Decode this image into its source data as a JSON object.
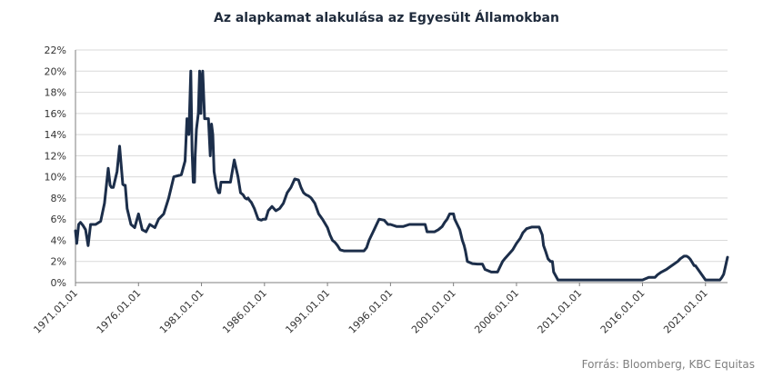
{
  "chart_data": {
    "type": "line",
    "title": "Az alapkamat alakulása az Egyesült Államokban",
    "xlabel": "",
    "ylabel": "",
    "ylim": [
      0,
      22
    ],
    "x_range": [
      1971.0,
      2022.75
    ],
    "y_ticks": [
      "0%",
      "2%",
      "4%",
      "6%",
      "8%",
      "10%",
      "12%",
      "14%",
      "16%",
      "18%",
      "20%",
      "22%"
    ],
    "x_tick_labels": [
      "1971.01.01",
      "1976.01.01",
      "1981.01.01",
      "1986.01.01",
      "1991.01.01",
      "1996.01.01",
      "2001.01.01",
      "2006.01.01",
      "2011.01.01",
      "2016.01.01",
      "2021.01.01"
    ],
    "grid": "horizontal",
    "line_color": "#1c2e4a",
    "series": [
      {
        "x": [
          1971.0,
          1971.1,
          1971.25,
          1971.4,
          1971.6,
          1971.8,
          1972.0,
          1972.2,
          1972.6,
          1973.0,
          1973.3,
          1973.6,
          1973.75,
          1973.85,
          1974.0,
          1974.3,
          1974.5,
          1974.75,
          1974.85,
          1974.95,
          1975.1,
          1975.4,
          1975.7,
          1976.0,
          1976.3,
          1976.6,
          1976.9,
          1977.3,
          1977.6,
          1978.0,
          1978.4,
          1978.8,
          1979.1,
          1979.4,
          1979.7,
          1979.85,
          1980.0,
          1980.15,
          1980.25,
          1980.35,
          1980.45,
          1980.5,
          1980.6,
          1980.75,
          1980.85,
          1980.95,
          1981.0,
          1981.1,
          1981.25,
          1981.4,
          1981.55,
          1981.7,
          1981.8,
          1981.9,
          1982.0,
          1982.2,
          1982.35,
          1982.45,
          1982.55,
          1982.75,
          1982.9,
          1983.0,
          1983.3,
          1983.6,
          1983.9,
          1984.1,
          1984.3,
          1984.45,
          1984.6,
          1984.7,
          1984.8,
          1984.95,
          1985.2,
          1985.5,
          1985.75,
          1985.9,
          1986.1,
          1986.3,
          1986.6,
          1986.9,
          1987.2,
          1987.5,
          1987.8,
          1988.1,
          1988.4,
          1988.7,
          1988.9,
          1989.1,
          1989.3,
          1989.5,
          1989.7,
          1990.0,
          1990.3,
          1990.6,
          1990.8,
          1991.0,
          1991.2,
          1991.4,
          1991.6,
          1991.8,
          1992.0,
          1992.3,
          1992.6,
          1992.9,
          1993.4,
          1993.9,
          1994.1,
          1994.3,
          1994.5,
          1994.7,
          1994.9,
          1995.1,
          1995.5,
          1995.8,
          1996.0,
          1996.5,
          1997.0,
          1997.5,
          1998.0,
          1998.5,
          1998.75,
          1998.9,
          1999.1,
          1999.5,
          1999.8,
          2000.1,
          2000.3,
          2000.5,
          2000.7,
          2000.9,
          2001.0,
          2001.1,
          2001.3,
          2001.5,
          2001.7,
          2001.85,
          2001.95,
          2002.1,
          2002.5,
          2002.9,
          2003.3,
          2003.5,
          2004.0,
          2004.3,
          2004.5,
          2004.7,
          2004.9,
          2005.1,
          2005.4,
          2005.7,
          2006.0,
          2006.3,
          2006.5,
          2006.8,
          2007.2,
          2007.5,
          2007.65,
          2007.8,
          2007.95,
          2008.05,
          2008.15,
          2008.3,
          2008.5,
          2008.7,
          2008.85,
          2008.95,
          2009.3,
          2010.0,
          2011.0,
          2012.0,
          2013.0,
          2014.0,
          2015.0,
          2015.9,
          2016.0,
          2016.5,
          2016.9,
          2017.0,
          2017.2,
          2017.5,
          2017.9,
          2018.2,
          2018.5,
          2018.8,
          2019.0,
          2019.3,
          2019.5,
          2019.65,
          2019.8,
          2019.95,
          2020.1,
          2020.2,
          2021.0,
          2021.5,
          2022.0,
          2022.15,
          2022.3,
          2022.45,
          2022.6,
          2022.75
        ],
        "name": "",
        "values": [
          4.9,
          3.7,
          5.5,
          5.7,
          5.4,
          5.0,
          3.5,
          5.5,
          5.5,
          5.8,
          7.5,
          10.8,
          9.2,
          9.0,
          9.0,
          10.5,
          12.9,
          9.3,
          9.2,
          9.2,
          7.0,
          5.5,
          5.2,
          6.5,
          5.0,
          4.8,
          5.5,
          5.2,
          6.0,
          6.5,
          8.0,
          10.0,
          10.1,
          10.2,
          11.5,
          15.5,
          14.0,
          20.0,
          12.5,
          9.5,
          9.5,
          12.0,
          14.5,
          16.0,
          20.0,
          16.0,
          19.0,
          20.0,
          15.5,
          15.5,
          15.5,
          12.0,
          15.0,
          14.0,
          10.5,
          9.0,
          8.5,
          8.5,
          9.5,
          9.5,
          9.5,
          9.5,
          9.5,
          11.6,
          10.0,
          8.5,
          8.3,
          8.0,
          7.9,
          8.0,
          7.8,
          7.6,
          7.0,
          6.0,
          5.9,
          6.0,
          6.0,
          6.8,
          7.2,
          6.8,
          7.0,
          7.5,
          8.5,
          9.0,
          9.8,
          9.7,
          9.0,
          8.5,
          8.3,
          8.2,
          8.0,
          7.5,
          6.5,
          6.0,
          5.6,
          5.2,
          4.5,
          4.0,
          3.8,
          3.5,
          3.1,
          3.0,
          3.0,
          3.0,
          3.0,
          3.0,
          3.3,
          4.0,
          4.5,
          5.0,
          5.5,
          6.0,
          5.9,
          5.5,
          5.5,
          5.3,
          5.3,
          5.5,
          5.5,
          5.5,
          5.5,
          4.8,
          4.8,
          4.8,
          5.0,
          5.3,
          5.7,
          6.0,
          6.5,
          6.5,
          6.5,
          6.0,
          5.5,
          5.0,
          4.0,
          3.5,
          3.0,
          2.0,
          1.8,
          1.75,
          1.75,
          1.25,
          1.0,
          1.0,
          1.0,
          1.5,
          2.0,
          2.3,
          2.7,
          3.1,
          3.7,
          4.2,
          4.7,
          5.1,
          5.25,
          5.25,
          5.25,
          5.25,
          4.8,
          4.5,
          3.5,
          3.0,
          2.25,
          2.0,
          2.0,
          1.0,
          0.25,
          0.25,
          0.25,
          0.25,
          0.25,
          0.25,
          0.25,
          0.25,
          0.25,
          0.5,
          0.5,
          0.5,
          0.75,
          1.0,
          1.25,
          1.5,
          1.75,
          2.0,
          2.25,
          2.5,
          2.5,
          2.4,
          2.2,
          1.9,
          1.6,
          1.6,
          0.25,
          0.25,
          0.25,
          0.25,
          0.5,
          0.8,
          1.6,
          2.4
        ]
      }
    ]
  },
  "footer": {
    "source": "Forrás: Bloomberg,  KBC Equitas"
  }
}
